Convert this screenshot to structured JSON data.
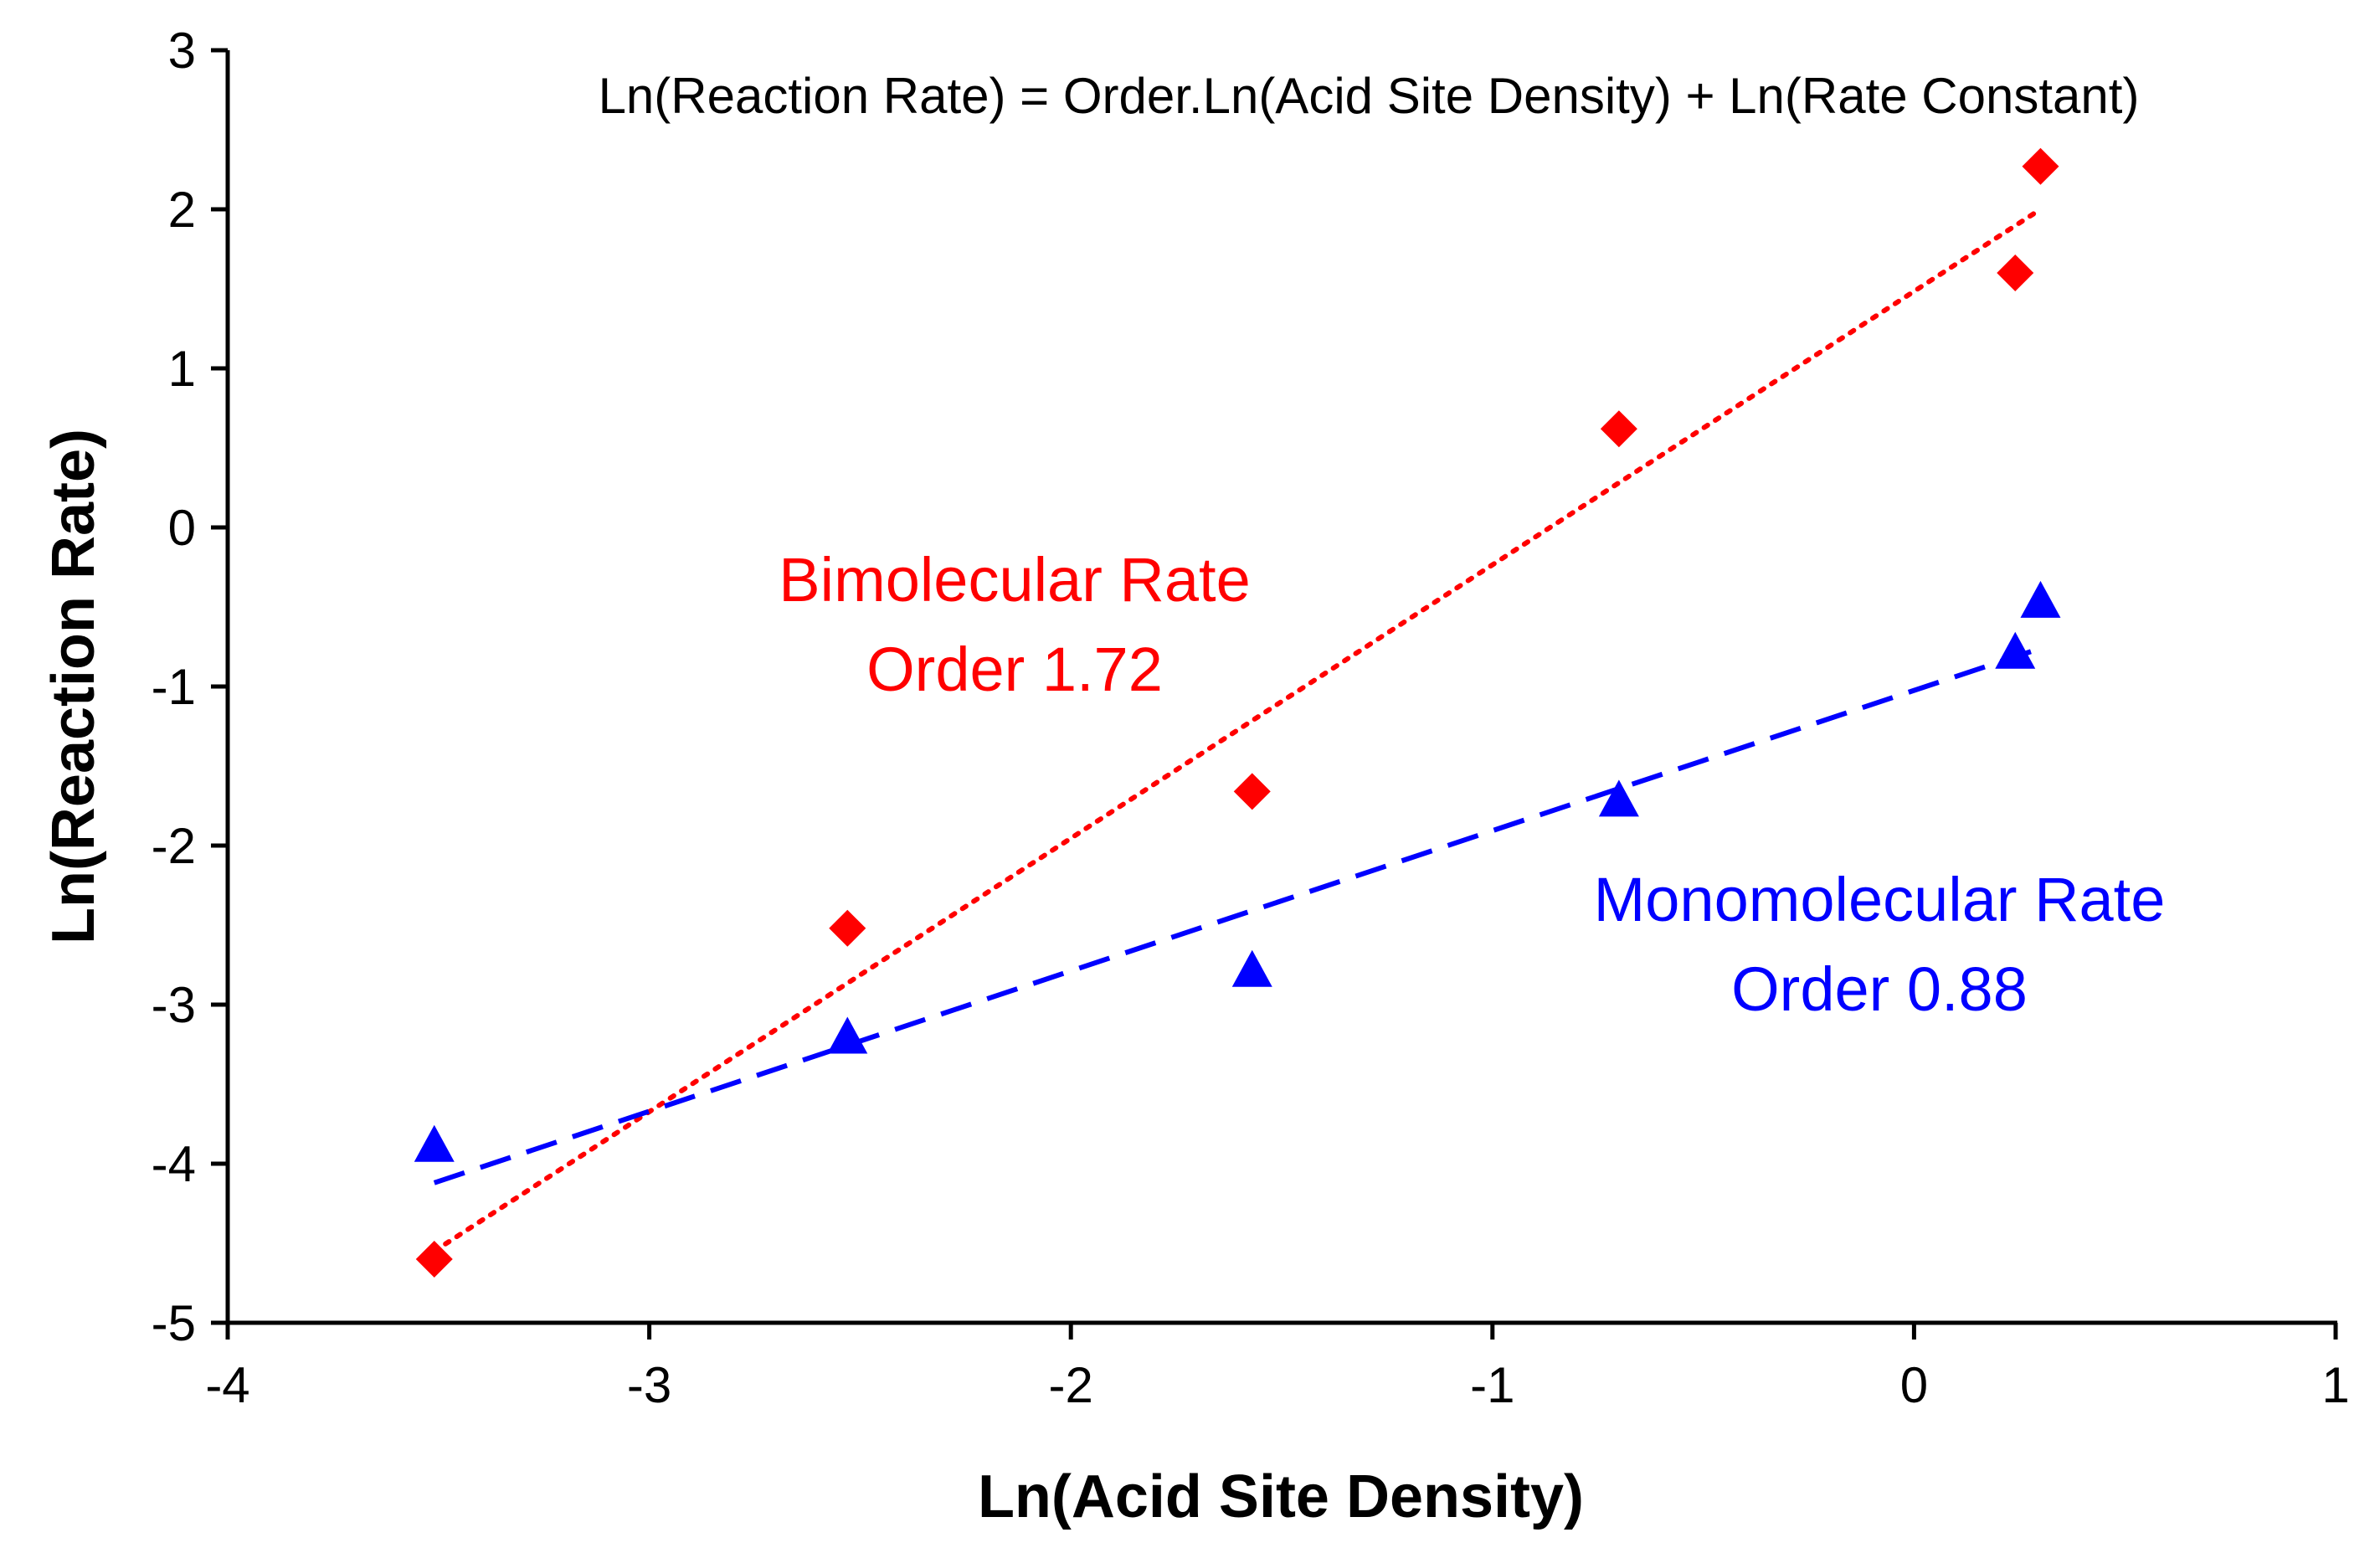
{
  "chart_data": {
    "type": "scatter",
    "title": "Ln(Reaction Rate) = Order.Ln(Acid Site Density) + Ln(Rate Constant)",
    "xlabel": "Ln(Acid Site Density)",
    "ylabel": "Ln(Reaction Rate)",
    "xlim": [
      -4,
      1
    ],
    "ylim": [
      -5,
      3
    ],
    "xticks": [
      -4,
      -3,
      -2,
      -1,
      0,
      1
    ],
    "yticks": [
      -5,
      -4,
      -3,
      -2,
      -1,
      0,
      1,
      2,
      3
    ],
    "xtick_labels": [
      "-4",
      "-3",
      "-2",
      "-1",
      "0",
      "1"
    ],
    "ytick_labels": [
      "-5",
      "-4",
      "-3",
      "-2",
      "-1",
      "0",
      "1",
      "2",
      "3"
    ],
    "grid": false,
    "series": [
      {
        "name": "Bimolecular",
        "marker": "diamond",
        "color": "#ff0000",
        "x": [
          -3.51,
          -2.53,
          -1.57,
          -0.7,
          0.24,
          0.3
        ],
        "y": [
          -4.6,
          -2.52,
          -1.66,
          0.62,
          1.6,
          2.27
        ],
        "trendline": {
          "style": "dotted",
          "x": [
            -3.51,
            0.3
          ],
          "y": [
            -4.55,
            2.0
          ]
        },
        "label_lines": [
          "Bimolecular Rate",
          "Order 1.72"
        ]
      },
      {
        "name": "Monomolecular",
        "marker": "triangle",
        "color": "#0000ff",
        "x": [
          -3.51,
          -2.53,
          -1.57,
          -0.7,
          0.24,
          0.3
        ],
        "y": [
          -3.9,
          -3.22,
          -2.8,
          -1.73,
          -0.8,
          -0.48
        ],
        "trendline": {
          "style": "dashed",
          "x": [
            -3.51,
            0.3
          ],
          "y": [
            -4.12,
            -0.76
          ]
        },
        "label_lines": [
          "Monomolecular Rate",
          "Order 0.88"
        ]
      }
    ]
  }
}
